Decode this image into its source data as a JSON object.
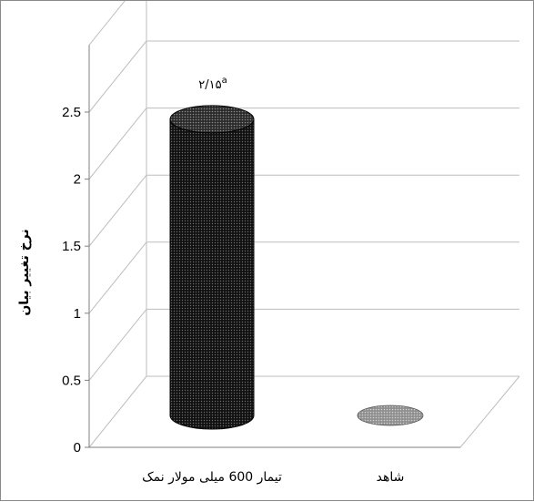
{
  "chart_data": {
    "type": "bar",
    "style": "3d-cylinder",
    "categories": [
      "تیمار 600 میلی مولار نمک",
      "شاهد"
    ],
    "values": [
      2.15,
      0
    ],
    "data_labels": [
      "۲/۱۵",
      ""
    ],
    "data_label_superscripts": [
      "a",
      ""
    ],
    "ylabel": "نرخ تغییر بیان",
    "xlabel": "",
    "title": "",
    "ylim": [
      0,
      2.5
    ],
    "yticks": [
      0,
      0.5,
      1,
      1.5,
      2,
      2.5
    ],
    "ytick_labels": [
      "0",
      "0.5",
      "1",
      "1.5",
      "2",
      "2.5"
    ],
    "grid": true,
    "legend": "none",
    "colors": {
      "bar_fill": "#1c1c1c",
      "bar_top": "#3a3a3a",
      "baseline_ellipse": "#9c9c9c",
      "grid": "#bdbdbd",
      "axis": "#7f7f7f"
    }
  }
}
